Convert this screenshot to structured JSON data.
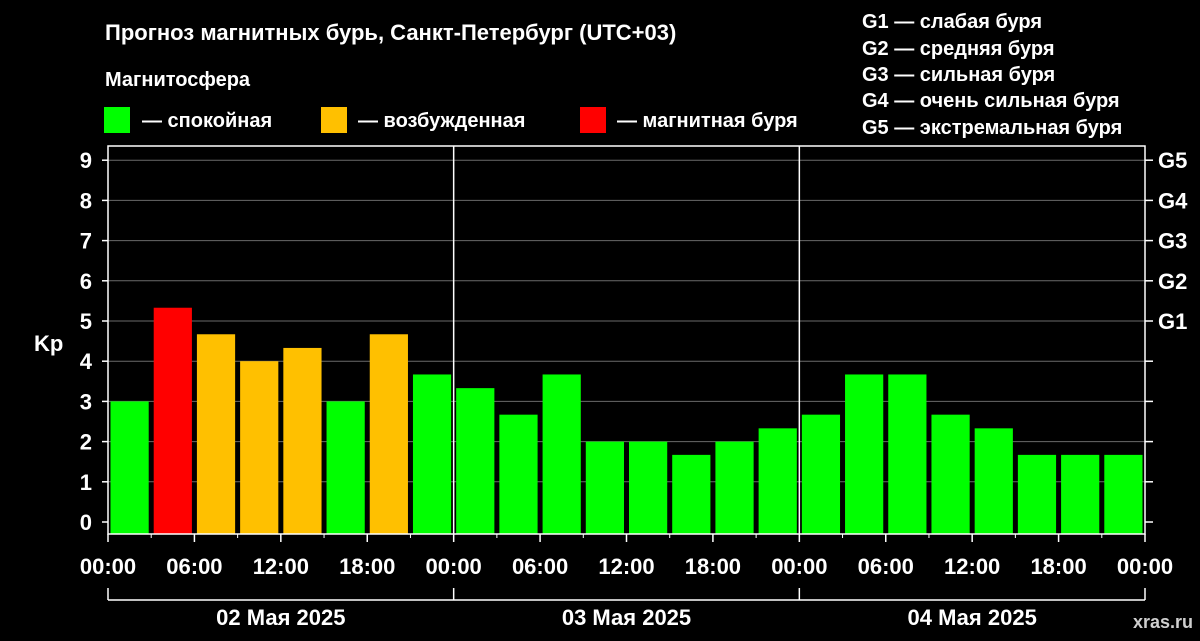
{
  "title": "Прогноз магнитных бурь, Санкт-Петербург (UTC+03)",
  "legend": {
    "heading": "Магнитосфера",
    "items": [
      {
        "key": "calm",
        "label": "— спокойная",
        "color": "#00ff00"
      },
      {
        "key": "excited",
        "label": "— возбужденная",
        "color": "#ffc000"
      },
      {
        "key": "storm",
        "label": "— магнитная буря",
        "color": "#ff0000"
      }
    ]
  },
  "g_scale": [
    "G1 — слабая буря",
    "G2 — средняя буря",
    "G3 — сильная буря",
    "G4 — очень сильная буря",
    "G5 — экстремальная буря"
  ],
  "watermark": "xras.ru",
  "chart_data": {
    "type": "bar",
    "title": "Прогноз магнитных бурь, Санкт-Петербург (UTC+03)",
    "ylabel": "Kp",
    "ylim": [
      0,
      9
    ],
    "y_ticks": [
      "0",
      "1",
      "2",
      "3",
      "4",
      "5",
      "6",
      "7",
      "8",
      "9"
    ],
    "y2_ticks": [
      {
        "value": 5,
        "label": "G1"
      },
      {
        "value": 6,
        "label": "G2"
      },
      {
        "value": 7,
        "label": "G3"
      },
      {
        "value": 8,
        "label": "G4"
      },
      {
        "value": 9,
        "label": "G5"
      }
    ],
    "grid": true,
    "x_tick_labels": [
      "00:00",
      "06:00",
      "12:00",
      "18:00",
      "00:00",
      "06:00",
      "12:00",
      "18:00",
      "00:00",
      "06:00",
      "12:00",
      "18:00",
      "00:00"
    ],
    "days": [
      "02 Мая 2025",
      "03 Мая 2025",
      "04 Мая 2025"
    ],
    "interval_hours": 3,
    "values": [
      3.0,
      5.33,
      4.67,
      4.0,
      4.33,
      3.0,
      4.67,
      3.67,
      3.33,
      2.67,
      3.67,
      2.0,
      2.0,
      1.67,
      2.0,
      2.33,
      2.67,
      3.67,
      3.67,
      2.67,
      2.33,
      1.67,
      1.67,
      1.67
    ],
    "levels": [
      "calm",
      "storm",
      "excited",
      "excited",
      "excited",
      "calm",
      "excited",
      "calm",
      "calm",
      "calm",
      "calm",
      "calm",
      "calm",
      "calm",
      "calm",
      "calm",
      "calm",
      "calm",
      "calm",
      "calm",
      "calm",
      "calm",
      "calm",
      "calm"
    ]
  }
}
